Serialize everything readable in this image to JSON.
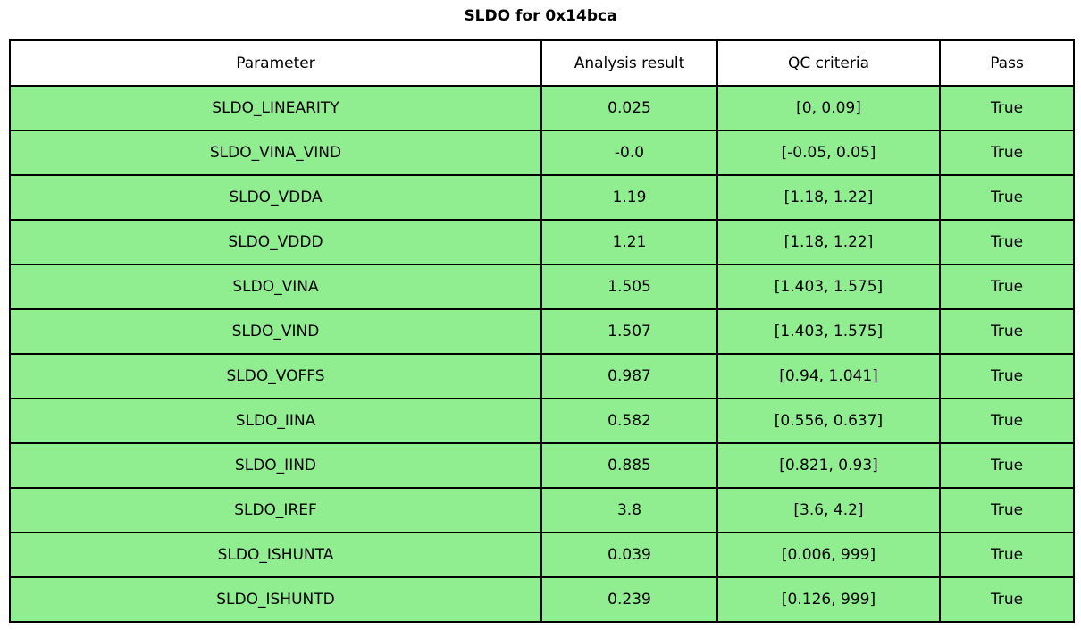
{
  "title": "SLDO for 0x14bca",
  "table": {
    "headers": {
      "parameter": "Parameter",
      "result": "Analysis result",
      "criteria": "QC criteria",
      "pass": "Pass"
    },
    "rows": [
      {
        "parameter": "SLDO_LINEARITY",
        "result": "0.025",
        "criteria": "[0, 0.09]",
        "pass": "True"
      },
      {
        "parameter": "SLDO_VINA_VIND",
        "result": "-0.0",
        "criteria": "[-0.05, 0.05]",
        "pass": "True"
      },
      {
        "parameter": "SLDO_VDDA",
        "result": "1.19",
        "criteria": "[1.18, 1.22]",
        "pass": "True"
      },
      {
        "parameter": "SLDO_VDDD",
        "result": "1.21",
        "criteria": "[1.18, 1.22]",
        "pass": "True"
      },
      {
        "parameter": "SLDO_VINA",
        "result": "1.505",
        "criteria": "[1.403, 1.575]",
        "pass": "True"
      },
      {
        "parameter": "SLDO_VIND",
        "result": "1.507",
        "criteria": "[1.403, 1.575]",
        "pass": "True"
      },
      {
        "parameter": "SLDO_VOFFS",
        "result": "0.987",
        "criteria": "[0.94, 1.041]",
        "pass": "True"
      },
      {
        "parameter": "SLDO_IINA",
        "result": "0.582",
        "criteria": "[0.556, 0.637]",
        "pass": "True"
      },
      {
        "parameter": "SLDO_IIND",
        "result": "0.885",
        "criteria": "[0.821, 0.93]",
        "pass": "True"
      },
      {
        "parameter": "SLDO_IREF",
        "result": "3.8",
        "criteria": "[3.6, 4.2]",
        "pass": "True"
      },
      {
        "parameter": "SLDO_ISHUNTA",
        "result": "0.039",
        "criteria": "[0.006, 999]",
        "pass": "True"
      },
      {
        "parameter": "SLDO_ISHUNTD",
        "result": "0.239",
        "criteria": "[0.126, 999]",
        "pass": "True"
      }
    ]
  },
  "colors": {
    "pass_row_bg": "#90EE90",
    "header_bg": "#FFFFFF",
    "border": "#000000",
    "text": "#000000"
  }
}
